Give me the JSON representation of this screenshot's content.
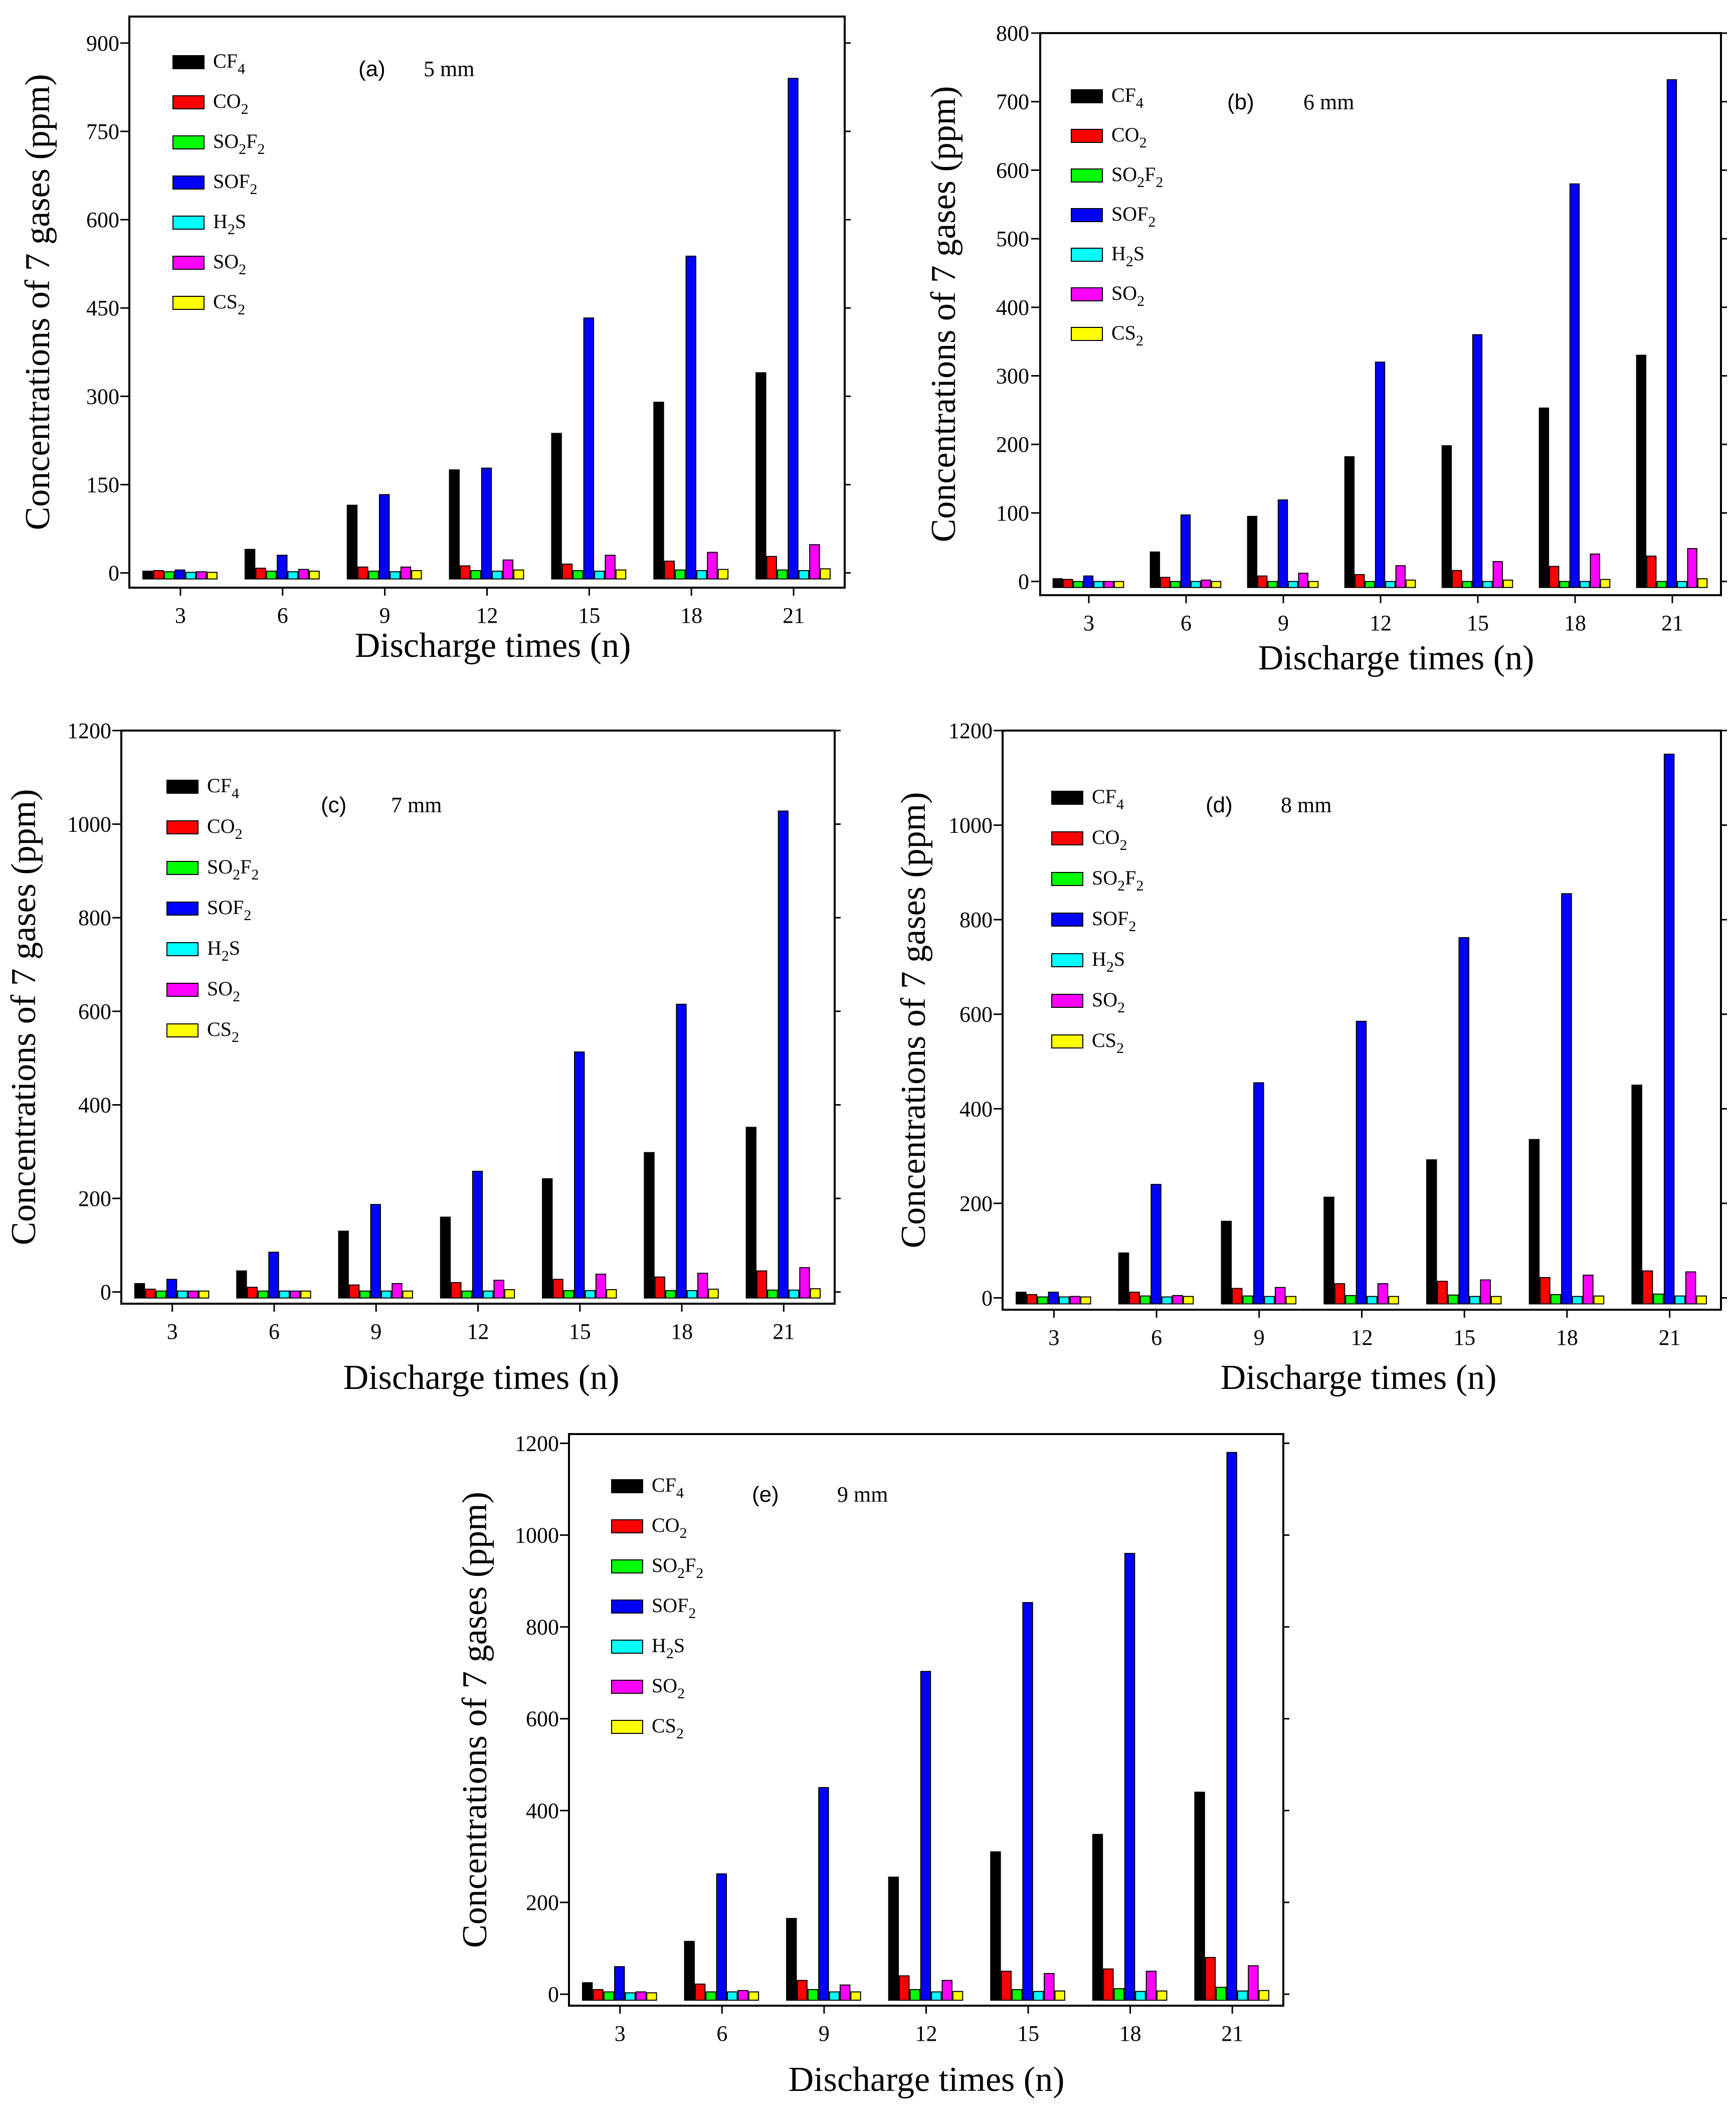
{
  "chart_data": [
    {
      "type": "bar",
      "panel_label": "(a)",
      "subtitle": "5 mm",
      "xlabel": "Discharge times (n)",
      "ylabel": "Concentrations of 7 gases (ppm)",
      "categories": [
        "3",
        "6",
        "9",
        "12",
        "15",
        "18",
        "21"
      ],
      "yticks": [
        "0",
        "150",
        "300",
        "450",
        "600",
        "750",
        "900"
      ],
      "ylim": [
        -25,
        945
      ],
      "legend": "top-left",
      "series": [
        {
          "name": "CF4",
          "base": "CF",
          "sub": "4",
          "color": "#000000",
          "values": [
            3,
            40,
            115,
            175,
            237,
            290,
            340
          ]
        },
        {
          "name": "CO2",
          "base": "CO",
          "sub": "2",
          "color": "#ff0000",
          "values": [
            4,
            8,
            10,
            12,
            15,
            20,
            28
          ]
        },
        {
          "name": "SO2F2",
          "base": "SO",
          "sub": "2",
          "base2": "F",
          "sub2": "2",
          "color": "#00ff00",
          "values": [
            2,
            3,
            3,
            4,
            4,
            5,
            5
          ]
        },
        {
          "name": "SOF2",
          "base": "SOF",
          "sub": "2",
          "color": "#0000ff",
          "values": [
            5,
            30,
            133,
            178,
            433,
            538,
            840
          ]
        },
        {
          "name": "H2S",
          "base": "H",
          "sub": "2",
          "base2": "S",
          "color": "#00ffff",
          "values": [
            1,
            2,
            2,
            3,
            3,
            4,
            4
          ]
        },
        {
          "name": "SO2",
          "base": "SO",
          "sub": "2",
          "color": "#ff00ff",
          "values": [
            2,
            6,
            10,
            22,
            30,
            35,
            48
          ]
        },
        {
          "name": "CS2",
          "base": "CS",
          "sub": "2",
          "color": "#ffff00",
          "values": [
            1,
            3,
            4,
            5,
            5,
            6,
            7
          ]
        }
      ]
    },
    {
      "type": "bar",
      "panel_label": "(b)",
      "subtitle": "6 mm",
      "xlabel": "Discharge times (n)",
      "ylabel": "Concentrations of 7 gases (ppm)",
      "categories": [
        "3",
        "6",
        "9",
        "12",
        "15",
        "18",
        "21"
      ],
      "yticks": [
        "0",
        "100",
        "200",
        "300",
        "400",
        "500",
        "600",
        "700",
        "800"
      ],
      "ylim": [
        -20,
        800
      ],
      "legend": "top-left",
      "series": [
        {
          "name": "CF4",
          "base": "CF",
          "sub": "4",
          "color": "#000000",
          "values": [
            4,
            43,
            95,
            182,
            198,
            253,
            330
          ]
        },
        {
          "name": "CO2",
          "base": "CO",
          "sub": "2",
          "color": "#ff0000",
          "values": [
            3,
            6,
            8,
            10,
            16,
            22,
            37
          ]
        },
        {
          "name": "SO2F2",
          "base": "SO",
          "sub": "2",
          "base2": "F",
          "sub2": "2",
          "color": "#00ff00",
          "values": [
            0,
            0,
            0,
            0,
            0,
            0,
            0
          ]
        },
        {
          "name": "SOF2",
          "base": "SOF",
          "sub": "2",
          "color": "#0000ff",
          "values": [
            8,
            97,
            119,
            320,
            360,
            580,
            732
          ]
        },
        {
          "name": "H2S",
          "base": "H",
          "sub": "2",
          "base2": "S",
          "color": "#00ffff",
          "values": [
            0,
            0,
            0,
            0,
            0,
            0,
            0
          ]
        },
        {
          "name": "SO2",
          "base": "SO",
          "sub": "2",
          "color": "#ff00ff",
          "values": [
            0,
            2,
            12,
            23,
            29,
            40,
            48
          ]
        },
        {
          "name": "CS2",
          "base": "CS",
          "sub": "2",
          "color": "#ffff00",
          "values": [
            0,
            0,
            0,
            2,
            2,
            3,
            4
          ]
        }
      ]
    },
    {
      "type": "bar",
      "panel_label": "(c)",
      "subtitle": "7 mm",
      "xlabel": "Discharge times (n)",
      "ylabel": "Concentrations of 7 gases (ppm)",
      "categories": [
        "3",
        "6",
        "9",
        "12",
        "15",
        "18",
        "21"
      ],
      "yticks": [
        "0",
        "200",
        "400",
        "600",
        "800",
        "1000",
        "1200"
      ],
      "ylim": [
        -25,
        1200
      ],
      "legend": "top-left",
      "series": [
        {
          "name": "CF4",
          "base": "CF",
          "sub": "4",
          "color": "#000000",
          "values": [
            18,
            45,
            130,
            160,
            242,
            298,
            352
          ]
        },
        {
          "name": "CO2",
          "base": "CO",
          "sub": "2",
          "color": "#ff0000",
          "values": [
            6,
            10,
            15,
            20,
            27,
            32,
            45
          ]
        },
        {
          "name": "SO2F2",
          "base": "SO",
          "sub": "2",
          "base2": "F",
          "sub2": "2",
          "color": "#00ff00",
          "values": [
            2,
            2,
            2,
            2,
            3,
            3,
            4
          ]
        },
        {
          "name": "SOF2",
          "base": "SOF",
          "sub": "2",
          "color": "#0000ff",
          "values": [
            27,
            85,
            187,
            258,
            513,
            615,
            1028
          ]
        },
        {
          "name": "H2S",
          "base": "H",
          "sub": "2",
          "base2": "S",
          "color": "#00ffff",
          "values": [
            2,
            2,
            2,
            2,
            3,
            3,
            4
          ]
        },
        {
          "name": "SO2",
          "base": "SO",
          "sub": "2",
          "color": "#ff00ff",
          "values": [
            2,
            2,
            18,
            25,
            38,
            40,
            52
          ]
        },
        {
          "name": "CS2",
          "base": "CS",
          "sub": "2",
          "color": "#ffff00",
          "values": [
            2,
            2,
            2,
            5,
            5,
            6,
            7
          ]
        }
      ]
    },
    {
      "type": "bar",
      "panel_label": "(d)",
      "subtitle": "8 mm",
      "xlabel": "Discharge times (n)",
      "ylabel": "Concentrations of 7 gases (ppm)",
      "categories": [
        "3",
        "6",
        "9",
        "12",
        "15",
        "18",
        "21"
      ],
      "yticks": [
        "0",
        "200",
        "400",
        "600",
        "800",
        "1000",
        "1200"
      ],
      "ylim": [
        -25,
        1200
      ],
      "legend": "top-left",
      "series": [
        {
          "name": "CF4",
          "base": "CF",
          "sub": "4",
          "color": "#000000",
          "values": [
            12,
            95,
            162,
            213,
            292,
            335,
            450
          ]
        },
        {
          "name": "CO2",
          "base": "CO",
          "sub": "2",
          "color": "#ff0000",
          "values": [
            7,
            12,
            20,
            30,
            35,
            43,
            57
          ]
        },
        {
          "name": "SO2F2",
          "base": "SO",
          "sub": "2",
          "base2": "F",
          "sub2": "2",
          "color": "#00ff00",
          "values": [
            2,
            4,
            4,
            5,
            6,
            7,
            8
          ]
        },
        {
          "name": "SOF2",
          "base": "SOF",
          "sub": "2",
          "color": "#0000ff",
          "values": [
            12,
            240,
            455,
            585,
            762,
            855,
            1150
          ]
        },
        {
          "name": "H2S",
          "base": "H",
          "sub": "2",
          "base2": "S",
          "color": "#00ffff",
          "values": [
            2,
            2,
            3,
            3,
            3,
            3,
            4
          ]
        },
        {
          "name": "SO2",
          "base": "SO",
          "sub": "2",
          "color": "#ff00ff",
          "values": [
            3,
            5,
            22,
            30,
            38,
            48,
            55
          ]
        },
        {
          "name": "CS2",
          "base": "CS",
          "sub": "2",
          "color": "#ffff00",
          "values": [
            2,
            3,
            3,
            3,
            3,
            4,
            4
          ]
        }
      ]
    },
    {
      "type": "bar",
      "panel_label": "(e)",
      "subtitle": "9 mm",
      "xlabel": "Discharge times (n)",
      "ylabel": "Concentrations of 7 gases (ppm)",
      "categories": [
        "3",
        "6",
        "9",
        "12",
        "15",
        "18",
        "21"
      ],
      "yticks": [
        "0",
        "200",
        "400",
        "600",
        "800",
        "1000",
        "1200"
      ],
      "ylim": [
        -25,
        1220
      ],
      "legend": "top-left",
      "series": [
        {
          "name": "CF4",
          "base": "CF",
          "sub": "4",
          "color": "#000000",
          "values": [
            25,
            115,
            165,
            255,
            310,
            348,
            440
          ]
        },
        {
          "name": "CO2",
          "base": "CO",
          "sub": "2",
          "color": "#ff0000",
          "values": [
            10,
            22,
            30,
            40,
            50,
            55,
            80
          ]
        },
        {
          "name": "SO2F2",
          "base": "SO",
          "sub": "2",
          "base2": "F",
          "sub2": "2",
          "color": "#00ff00",
          "values": [
            5,
            5,
            10,
            10,
            10,
            12,
            15
          ]
        },
        {
          "name": "SOF2",
          "base": "SOF",
          "sub": "2",
          "color": "#0000ff",
          "values": [
            60,
            262,
            450,
            703,
            853,
            960,
            1180
          ]
        },
        {
          "name": "H2S",
          "base": "H",
          "sub": "2",
          "base2": "S",
          "color": "#00ffff",
          "values": [
            3,
            5,
            5,
            5,
            6,
            6,
            7
          ]
        },
        {
          "name": "SO2",
          "base": "SO",
          "sub": "2",
          "color": "#ff00ff",
          "values": [
            5,
            8,
            20,
            30,
            45,
            50,
            62
          ]
        },
        {
          "name": "CS2",
          "base": "CS",
          "sub": "2",
          "color": "#ffff00",
          "values": [
            3,
            5,
            5,
            6,
            7,
            7,
            8
          ]
        }
      ]
    }
  ]
}
